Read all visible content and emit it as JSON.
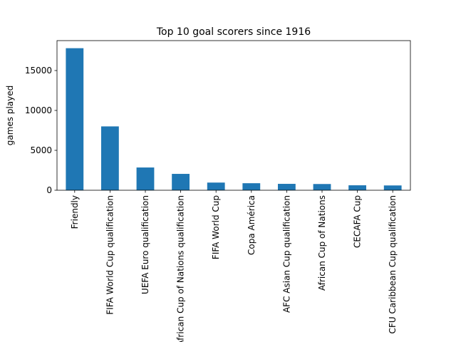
{
  "chart_data": {
    "type": "bar",
    "title": "Top 10 goal scorers since 1916",
    "y_label": "games played",
    "categories": [
      "Friendly",
      "FIFA World Cup qualification",
      "UEFA Euro qualification",
      "African Cup of Nations qualification",
      "FIFA World Cup",
      "Copa América",
      "AFC Asian Cup qualification",
      "African Cup of Nations",
      "CECAFA Cup",
      "CFU Caribbean Cup qualification"
    ],
    "values": [
      17800,
      8000,
      2850,
      2050,
      960,
      880,
      800,
      780,
      620,
      600
    ],
    "color": "#1f77b4",
    "ylim": [
      0,
      18750
    ],
    "yticks": [
      0,
      5000,
      10000,
      15000
    ],
    "grid": false
  }
}
